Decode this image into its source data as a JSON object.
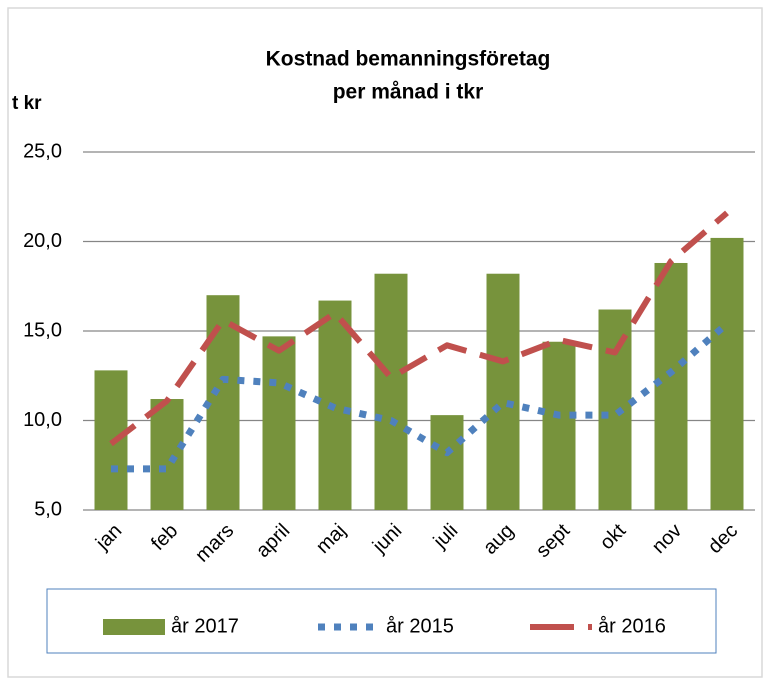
{
  "chart_data": {
    "type": "bar_line",
    "title": [
      "Kostnad bemanningsföretag",
      "per månad i tkr"
    ],
    "y_label": "t kr",
    "categories": [
      "jan",
      "feb",
      "mars",
      "april",
      "maj",
      "juni",
      "juli",
      "aug",
      "sept",
      "okt",
      "nov",
      "dec"
    ],
    "series": [
      {
        "name": "år 2017",
        "type": "bar",
        "color": "#77933c",
        "values": [
          12.8,
          11.2,
          17.0,
          14.7,
          16.7,
          18.2,
          10.3,
          18.2,
          14.4,
          16.2,
          18.8,
          20.2
        ]
      },
      {
        "name": "år 2015",
        "type": "line",
        "style": "dotted",
        "color": "#4f81bd",
        "values": [
          7.3,
          7.3,
          12.3,
          12.1,
          10.7,
          10.0,
          8.2,
          11.0,
          10.3,
          10.3,
          12.7,
          15.4
        ]
      },
      {
        "name": "år 2016",
        "type": "line",
        "style": "dashed",
        "color": "#c0504d",
        "values": [
          8.7,
          11.1,
          15.6,
          13.9,
          16.0,
          12.4,
          14.2,
          13.3,
          14.5,
          13.8,
          18.9,
          21.6
        ]
      }
    ],
    "ylim": [
      5,
      25
    ],
    "yticks": [
      {
        "value": 5,
        "label": "5,0"
      },
      {
        "value": 10,
        "label": "10,0"
      },
      {
        "value": 15,
        "label": "15,0"
      },
      {
        "value": 20,
        "label": "20,0"
      },
      {
        "value": 25,
        "label": "25,0"
      }
    ],
    "grid": true,
    "legend": "bottom"
  }
}
